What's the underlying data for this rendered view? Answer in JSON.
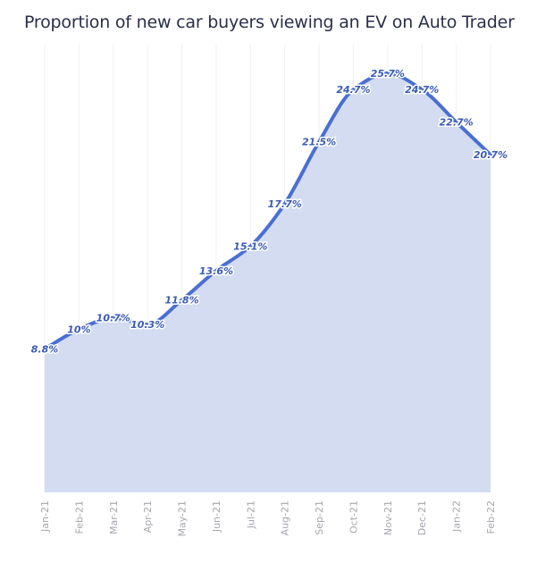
{
  "chart_data": {
    "type": "area",
    "title": "Proportion of new car buyers viewing an EV on Auto Trader",
    "xlabel": "",
    "ylabel": "",
    "categories": [
      "Jan-21",
      "Feb-21",
      "Mar-21",
      "Apr-21",
      "May-21",
      "Jun-21",
      "Jul-21",
      "Aug-21",
      "Sep-21",
      "Oct-21",
      "Nov-21",
      "Dec-21",
      "Jan-22",
      "Feb-22"
    ],
    "values": [
      8.8,
      10,
      10.7,
      10.3,
      11.8,
      13.6,
      15.1,
      17.7,
      21.5,
      24.7,
      25.7,
      24.7,
      22.7,
      20.7
    ],
    "data_labels": [
      "8.8%",
      "10%",
      "10.7%",
      "10.3%",
      "11.8%",
      "13.6%",
      "15.1%",
      "17.7%",
      "21.5%",
      "24.7%",
      "25.7%",
      "24.7%",
      "22.7%",
      "20.7%"
    ],
    "ylim": [
      0,
      28
    ],
    "grid": true,
    "colors": {
      "line": "#4a6fd1",
      "fill": "#d2daf0",
      "label": "#3b5bb5"
    }
  }
}
